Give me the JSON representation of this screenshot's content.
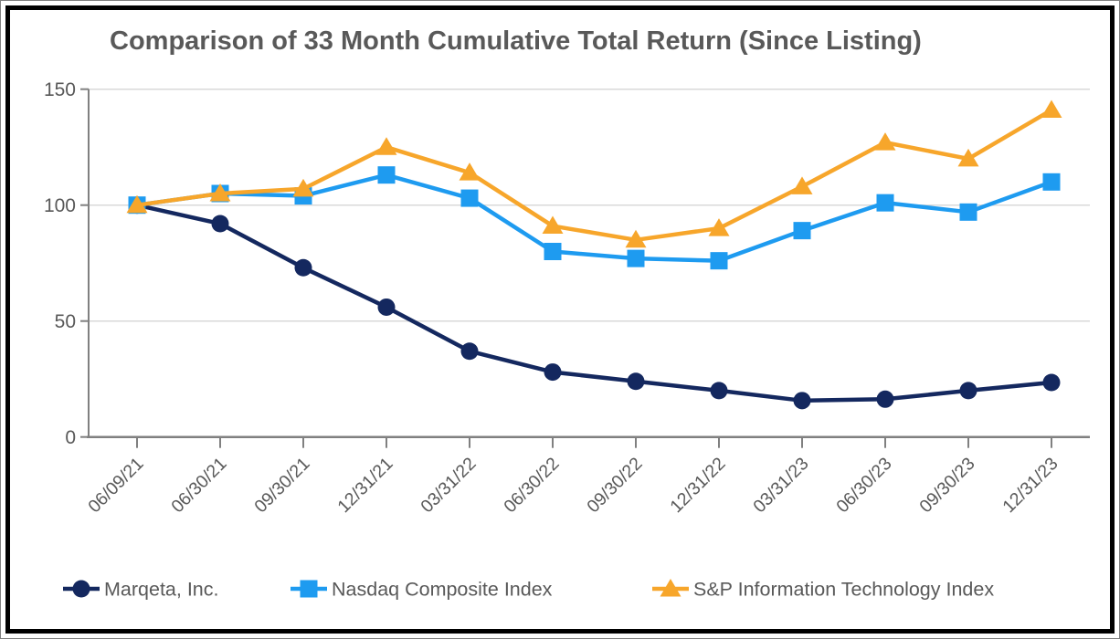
{
  "title": "Comparison of 33 Month Cumulative Total Return (Since Listing)",
  "colors": {
    "title_text": "#595959",
    "axis_text": "#595959",
    "legend_text": "#595959",
    "gridline": "#d9d9d9",
    "axis_line": "#808080",
    "frame_border": "#000000",
    "marqeta": "#14285f",
    "nasdaq": "#1e9bf0",
    "sp_it": "#f7a62b"
  },
  "chart_data": {
    "type": "line",
    "title": "Comparison of 33 Month Cumulative Total Return (Since Listing)",
    "categories": [
      "06/09/21",
      "06/30/21",
      "09/30/21",
      "12/31/21",
      "03/31/22",
      "06/30/22",
      "09/30/22",
      "12/31/22",
      "03/31/23",
      "06/30/23",
      "09/30/23",
      "12/31/23"
    ],
    "series": [
      {
        "name": "Marqeta, Inc.",
        "marker": "circle",
        "color": "#14285f",
        "values": [
          100,
          92,
          73,
          56,
          37,
          28,
          24,
          20,
          15.7,
          16.3,
          20,
          23.5
        ]
      },
      {
        "name": "Nasdaq Composite Index",
        "marker": "square",
        "color": "#1e9bf0",
        "values": [
          100,
          105,
          104,
          113,
          103,
          80,
          77,
          76,
          89,
          101,
          97,
          110
        ]
      },
      {
        "name": "S&P Information Technology Index",
        "marker": "triangle",
        "color": "#f7a62b",
        "values": [
          100,
          105,
          107,
          125,
          114,
          91,
          85,
          90,
          108,
          127,
          120,
          141
        ]
      }
    ],
    "xlabel": "",
    "ylabel": "",
    "yticks": [
      0,
      50,
      100,
      150
    ],
    "ylim": [
      0,
      150
    ],
    "x_tick_rotation_deg": -45,
    "grid": true,
    "legend_position": "bottom"
  }
}
